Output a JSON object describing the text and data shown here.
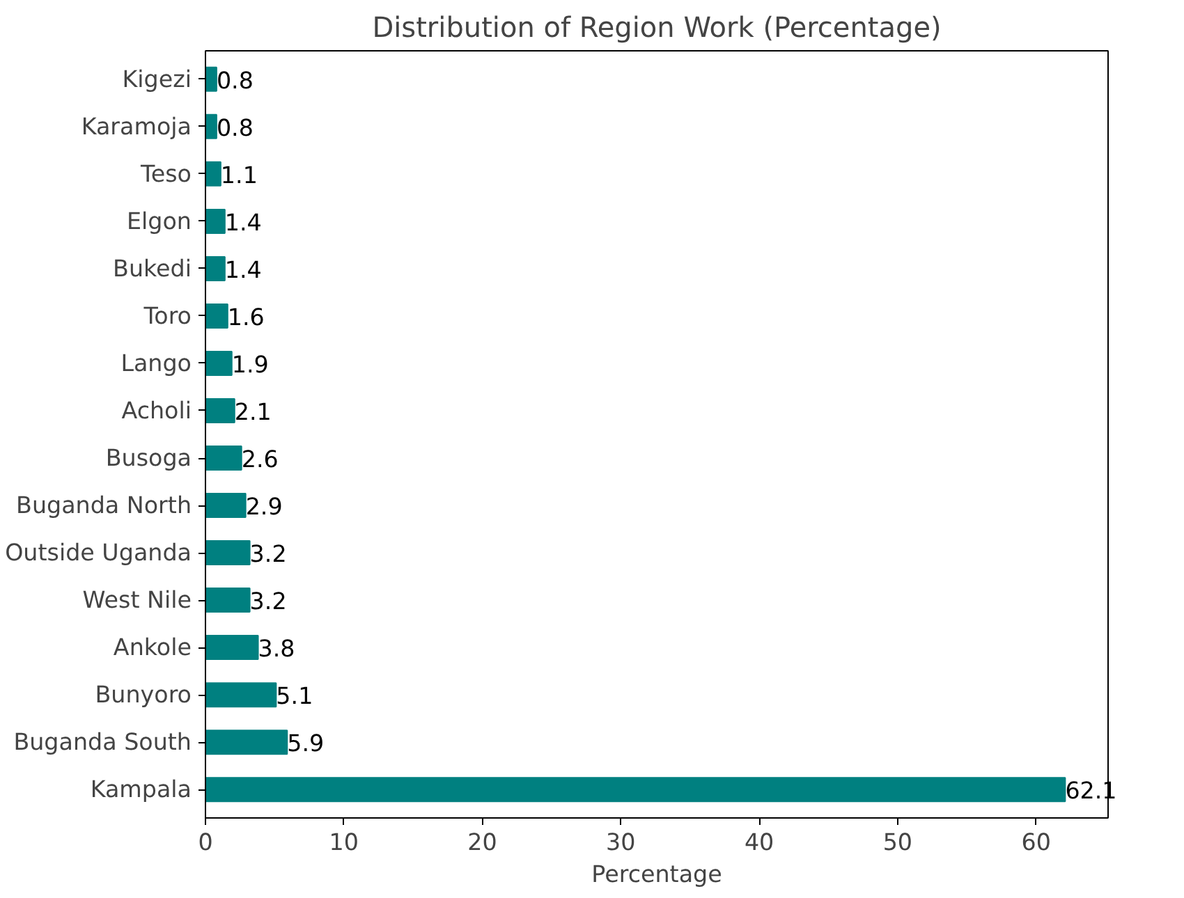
{
  "chart_data": {
    "type": "bar",
    "orientation": "horizontal",
    "title": "Distribution of Region Work (Percentage)",
    "xlabel": "Percentage",
    "categories": [
      "Kigezi",
      "Karamoja",
      "Teso",
      "Elgon",
      "Bukedi",
      "Toro",
      "Lango",
      "Acholi",
      "Busoga",
      "Buganda North",
      "Outside Uganda",
      "West Nile",
      "Ankole",
      "Bunyoro",
      "Buganda South",
      "Kampala"
    ],
    "values": [
      0.8,
      0.8,
      1.1,
      1.4,
      1.4,
      1.6,
      1.9,
      2.1,
      2.6,
      2.9,
      3.2,
      3.2,
      3.8,
      5.1,
      5.9,
      62.1
    ],
    "color": "#008080",
    "xlim": [
      0,
      65.2
    ],
    "xticks": [
      0,
      10,
      20,
      30,
      40,
      50,
      60
    ],
    "data_labels": true,
    "grid": false
  }
}
